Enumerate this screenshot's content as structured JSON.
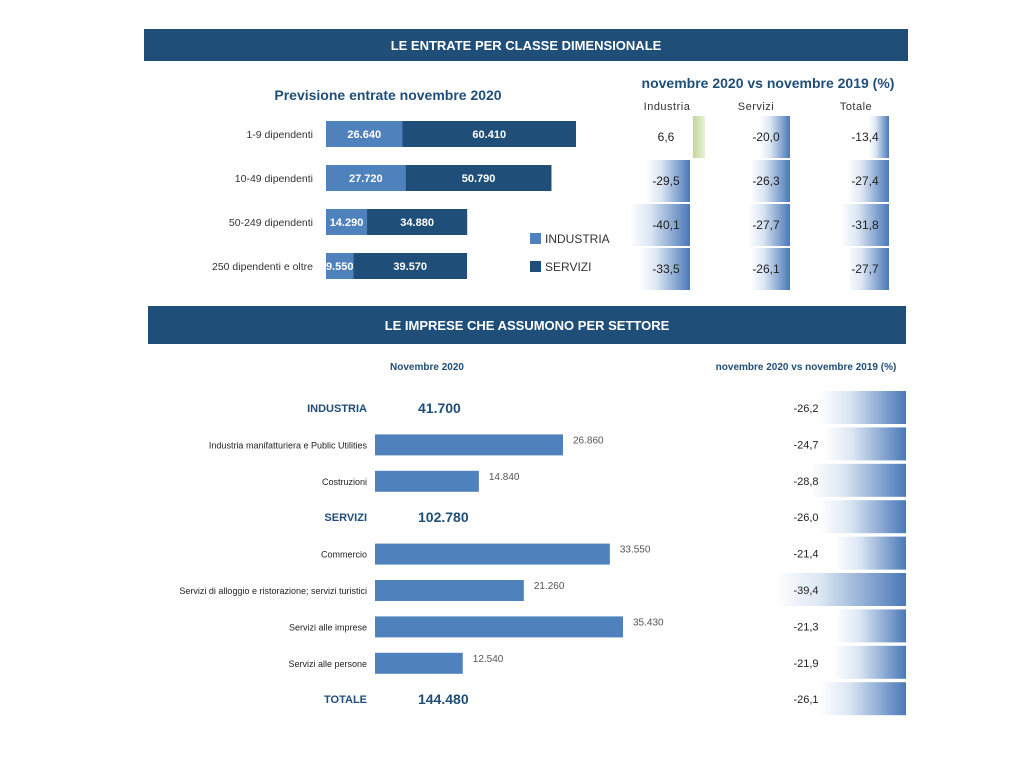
{
  "section1": {
    "banner": "LE ENTRATE PER CLASSE DIMENSIONALE",
    "left_title": "Previsione entrate novembre 2020",
    "right_title": "novembre 2020 vs novembre 2019 (%)",
    "col_headers": [
      "Industria",
      "Servizi",
      "Totale"
    ],
    "legend": [
      {
        "label": "INDUSTRIA",
        "color": "#4f81bd"
      },
      {
        "label": "SERVIZI",
        "color": "#1f4e79"
      }
    ]
  },
  "section2": {
    "banner": "LE IMPRESE CHE ASSUMONO PER SETTORE",
    "left_title": "Novembre 2020",
    "right_title": "novembre 2020 vs novembre 2019 (%)"
  },
  "colors": {
    "industria": "#4f81bd",
    "servizi": "#1f4e79",
    "header": "#1f4e79",
    "title_text": "#1f4e79",
    "positive_bar": "#c3d69b"
  },
  "chart_data": [
    {
      "type": "bar",
      "title": "Previsione entrate novembre 2020",
      "orientation": "horizontal",
      "stacked": true,
      "categories": [
        "1-9 dipendenti",
        "10-49 dipendenti",
        "50-249 dipendenti",
        "250 dipendenti e oltre"
      ],
      "category_labels": [
        "1-9 dipendenti",
        "10-49 dipendenti",
        "50-249 dipendenti",
        "250 dipendenti e oltre"
      ],
      "series": [
        {
          "name": "INDUSTRIA",
          "values": [
            26640,
            27720,
            14290,
            9550
          ],
          "labels": [
            "26.640",
            "27.720",
            "14.290",
            "9.550"
          ]
        },
        {
          "name": "SERVIZI",
          "values": [
            60410,
            50790,
            34880,
            39570
          ],
          "labels": [
            "60.410",
            "50.790",
            "34.880",
            "39.570"
          ]
        }
      ],
      "legend_position": "right"
    },
    {
      "type": "table",
      "title": "novembre 2020 vs novembre 2019 (%)",
      "columns": [
        "Industria",
        "Servizi",
        "Totale"
      ],
      "rows": [
        "1-9 dipendenti",
        "10-49 dipendenti",
        "50-249 dipendenti",
        "250 dipendenti e oltre"
      ],
      "values": [
        [
          6.6,
          -20.0,
          -13.4
        ],
        [
          -29.5,
          -26.3,
          -27.4
        ],
        [
          -40.1,
          -27.7,
          -31.8
        ],
        [
          -33.5,
          -26.1,
          -27.7
        ]
      ],
      "labels": [
        [
          "6,6",
          "-20,0",
          "-13,4"
        ],
        [
          "-29,5",
          "-26,3",
          "-27,4"
        ],
        [
          "-40,1",
          "-27,7",
          "-31,8"
        ],
        [
          "-33,5",
          "-26,1",
          "-27,7"
        ]
      ]
    },
    {
      "type": "bar",
      "title": "Novembre 2020",
      "orientation": "horizontal",
      "rows": [
        {
          "label": "INDUSTRIA",
          "kind": "group",
          "value": 41700,
          "value_label": "41.700"
        },
        {
          "label": "Industria manifatturiera e Public Utilities",
          "kind": "item",
          "value": 26860,
          "value_label": "26.860"
        },
        {
          "label": "Costruzioni",
          "kind": "item",
          "value": 14840,
          "value_label": "14.840"
        },
        {
          "label": "SERVIZI",
          "kind": "group",
          "value": 102780,
          "value_label": "102.780"
        },
        {
          "label": "Commercio",
          "kind": "item",
          "value": 33550,
          "value_label": "33.550"
        },
        {
          "label": "Servizi di alloggio e ristorazione; servizi turistici",
          "kind": "item",
          "value": 21260,
          "value_label": "21.260"
        },
        {
          "label": "Servizi alle imprese",
          "kind": "item",
          "value": 35430,
          "value_label": "35.430"
        },
        {
          "label": "Servizi alle persone",
          "kind": "item",
          "value": 12540,
          "value_label": "12.540"
        },
        {
          "label": "TOTALE",
          "kind": "group",
          "value": 144480,
          "value_label": "144.480"
        }
      ]
    },
    {
      "type": "bar",
      "title": "novembre 2020 vs novembre 2019 (%)",
      "orientation": "horizontal",
      "values": [
        -26.2,
        -24.7,
        -28.8,
        -26.0,
        -21.4,
        -39.4,
        -21.3,
        -21.9,
        -26.1
      ],
      "labels": [
        "-26,2",
        "-24,7",
        "-28,8",
        "-26,0",
        "-21,4",
        "-39,4",
        "-21,3",
        "-21,9",
        "-26,1"
      ]
    }
  ]
}
